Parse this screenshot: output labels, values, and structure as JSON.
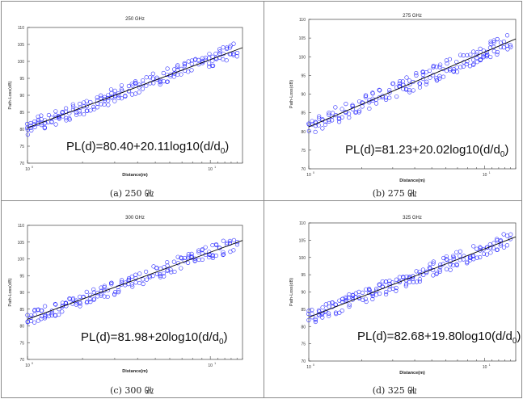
{
  "chart_data": [
    {
      "type": "scatter",
      "title": "250 GHz",
      "xlabel": "Distance(m)",
      "ylabel": "Path-Loss(dB)",
      "xscale": "log",
      "xlim": [
        1,
        15
      ],
      "ylim": [
        70,
        110
      ],
      "ytick_labels": [
        "70",
        "75",
        "80",
        "85",
        "90",
        "95",
        "100",
        "105",
        "110"
      ],
      "xtick_labels": [
        "10",
        "10"
      ],
      "xtick_exponents": [
        "0",
        "1"
      ],
      "equation": "PL(d)=80.40+20.11log10(d/d",
      "equation_sub": "0",
      "equation_tail": ")",
      "caption": "(a) 250 ㎓",
      "fit": {
        "intercept": 80.4,
        "slope": 20.11
      },
      "scatter_color": "#2a2aff",
      "line_color": "#000000"
    },
    {
      "type": "scatter",
      "title": "275 GHz",
      "xlabel": "Distance(m)",
      "ylabel": "Path-Loss(dB)",
      "xscale": "log",
      "xlim": [
        1,
        15
      ],
      "ylim": [
        70,
        110
      ],
      "ytick_labels": [
        "70",
        "75",
        "80",
        "85",
        "90",
        "95",
        "100",
        "105",
        "110"
      ],
      "xtick_labels": [
        "10",
        "10"
      ],
      "xtick_exponents": [
        "0",
        "1"
      ],
      "equation": "PL(d)=81.23+20.02log10(d/d",
      "equation_sub": "0",
      "equation_tail": ")",
      "caption": "(b) 275 ㎓",
      "fit": {
        "intercept": 81.23,
        "slope": 20.02
      },
      "scatter_color": "#2a2aff",
      "line_color": "#000000"
    },
    {
      "type": "scatter",
      "title": "300 GHz",
      "xlabel": "Distance(m)",
      "ylabel": "Path-Loss(dB)",
      "xscale": "log",
      "xlim": [
        1,
        15
      ],
      "ylim": [
        70,
        110
      ],
      "ytick_labels": [
        "70",
        "75",
        "80",
        "85",
        "90",
        "95",
        "100",
        "105",
        "110"
      ],
      "xtick_labels": [
        "10",
        "10"
      ],
      "xtick_exponents": [
        "0",
        "1"
      ],
      "equation": "PL(d)=81.98+20log10(d/d",
      "equation_sub": "0",
      "equation_tail": ")",
      "caption": "(c) 300 ㎓",
      "fit": {
        "intercept": 81.98,
        "slope": 20.0
      },
      "scatter_color": "#2a2aff",
      "line_color": "#000000"
    },
    {
      "type": "scatter",
      "title": "325 GHz",
      "xlabel": "Distance(m)",
      "ylabel": "Path-Loss(dB)",
      "xscale": "log",
      "xlim": [
        1,
        15
      ],
      "ylim": [
        70,
        110
      ],
      "ytick_labels": [
        "70",
        "75",
        "80",
        "85",
        "90",
        "95",
        "100",
        "105",
        "110"
      ],
      "xtick_labels": [
        "10",
        "10"
      ],
      "xtick_exponents": [
        "0",
        "1"
      ],
      "equation": "PL(d)=82.68+19.80log10(d/d",
      "equation_sub": "0",
      "equation_tail": ")",
      "caption": "(d) 325 ㎓",
      "fit": {
        "intercept": 82.68,
        "slope": 19.8
      },
      "scatter_color": "#2a2aff",
      "line_color": "#000000"
    }
  ]
}
